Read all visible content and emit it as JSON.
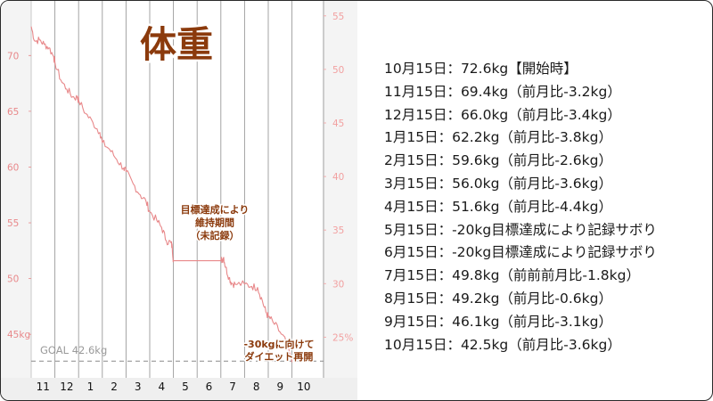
{
  "chart_data": {
    "type": "line",
    "title": "体重",
    "x_ticks": [
      "11",
      "12",
      "1",
      "2",
      "3",
      "4",
      "5",
      "6",
      "7",
      "8",
      "9",
      "10"
    ],
    "y_left_ticks": [
      "70",
      "65",
      "60",
      "55",
      "50",
      "45kg"
    ],
    "y_left_values": [
      70,
      65,
      60,
      55,
      50,
      45
    ],
    "y_right_ticks": [
      "55",
      "50",
      "45",
      "40",
      "35",
      "30",
      "25%"
    ],
    "y_right_values": [
      55,
      50,
      45,
      40,
      35,
      30,
      25
    ],
    "ylim_left": [
      41.1,
      74.9
    ],
    "ylim_right": [
      21.2,
      56.4
    ],
    "goal": {
      "label": "GOAL 42.6kg",
      "value": 42.6
    },
    "annotations": {
      "pause": [
        "目標達成により",
        "維持期間",
        "（未記録）"
      ],
      "restart": [
        "-30kgに向けて",
        "ダイエット再開"
      ]
    },
    "series": [
      {
        "color": "#e8888a",
        "points": [
          [
            0.0,
            72.6
          ],
          [
            0.15,
            71.3
          ],
          [
            0.35,
            71.4
          ],
          [
            0.55,
            71.0
          ],
          [
            0.75,
            70.7
          ],
          [
            0.95,
            69.9
          ],
          [
            1.0,
            69.4
          ],
          [
            1.25,
            67.8
          ],
          [
            1.5,
            67.0
          ],
          [
            1.75,
            66.3
          ],
          [
            1.95,
            66.2
          ],
          [
            2.0,
            66.0
          ],
          [
            2.3,
            64.8
          ],
          [
            2.6,
            64.0
          ],
          [
            2.9,
            63.1
          ],
          [
            3.0,
            62.2
          ],
          [
            3.3,
            61.6
          ],
          [
            3.6,
            60.7
          ],
          [
            3.9,
            59.9
          ],
          [
            4.0,
            59.6
          ],
          [
            4.3,
            58.5
          ],
          [
            4.6,
            57.5
          ],
          [
            4.85,
            56.9
          ],
          [
            5.0,
            56.0
          ],
          [
            5.3,
            55.2
          ],
          [
            5.5,
            54.6
          ],
          [
            5.7,
            53.4
          ],
          [
            5.9,
            53.2
          ],
          [
            5.95,
            52.8
          ],
          [
            6.0,
            51.6
          ],
          [
            7.0,
            51.6
          ],
          [
            8.0,
            51.6
          ],
          [
            8.05,
            51.7
          ],
          [
            8.12,
            51.9
          ],
          [
            8.2,
            51.0
          ],
          [
            8.35,
            50.1
          ],
          [
            8.45,
            49.6
          ],
          [
            8.6,
            49.5
          ],
          [
            9.0,
            49.5
          ],
          [
            9.3,
            49.3
          ],
          [
            9.55,
            49.2
          ],
          [
            9.75,
            48.0
          ],
          [
            9.9,
            47.0
          ],
          [
            10.0,
            46.6
          ],
          [
            10.2,
            46.1
          ],
          [
            10.5,
            45.2
          ],
          [
            10.75,
            44.3
          ],
          [
            11.0,
            42.5
          ]
        ]
      }
    ],
    "right_text_color": "#f2a0a0",
    "left_text_color": "#e8888a",
    "accent": "#8b3a0c"
  },
  "log_entries": [
    "10月15日：72.6kg【開始時】",
    "11月15日：69.4kg（前月比-3.2kg）",
    "12月15日：66.0kg（前月比-3.4kg）",
    "1月15日：62.2kg（前月比-3.8kg）",
    "2月15日：59.6kg（前月比-2.6kg）",
    "3月15日：56.0kg（前月比-3.6kg）",
    "4月15日：51.6kg（前月比-4.4kg）",
    "5月15日：-20kg目標達成により記録サボり",
    "6月15日：-20kg目標達成により記録サボり",
    "7月15日：49.8kg（前前前月比-1.8kg）",
    "8月15日：49.2kg（前月比-0.6kg）",
    "9月15日：46.1kg（前月比-3.1kg）",
    "10月15日：42.5kg（前月比-3.6kg）"
  ]
}
